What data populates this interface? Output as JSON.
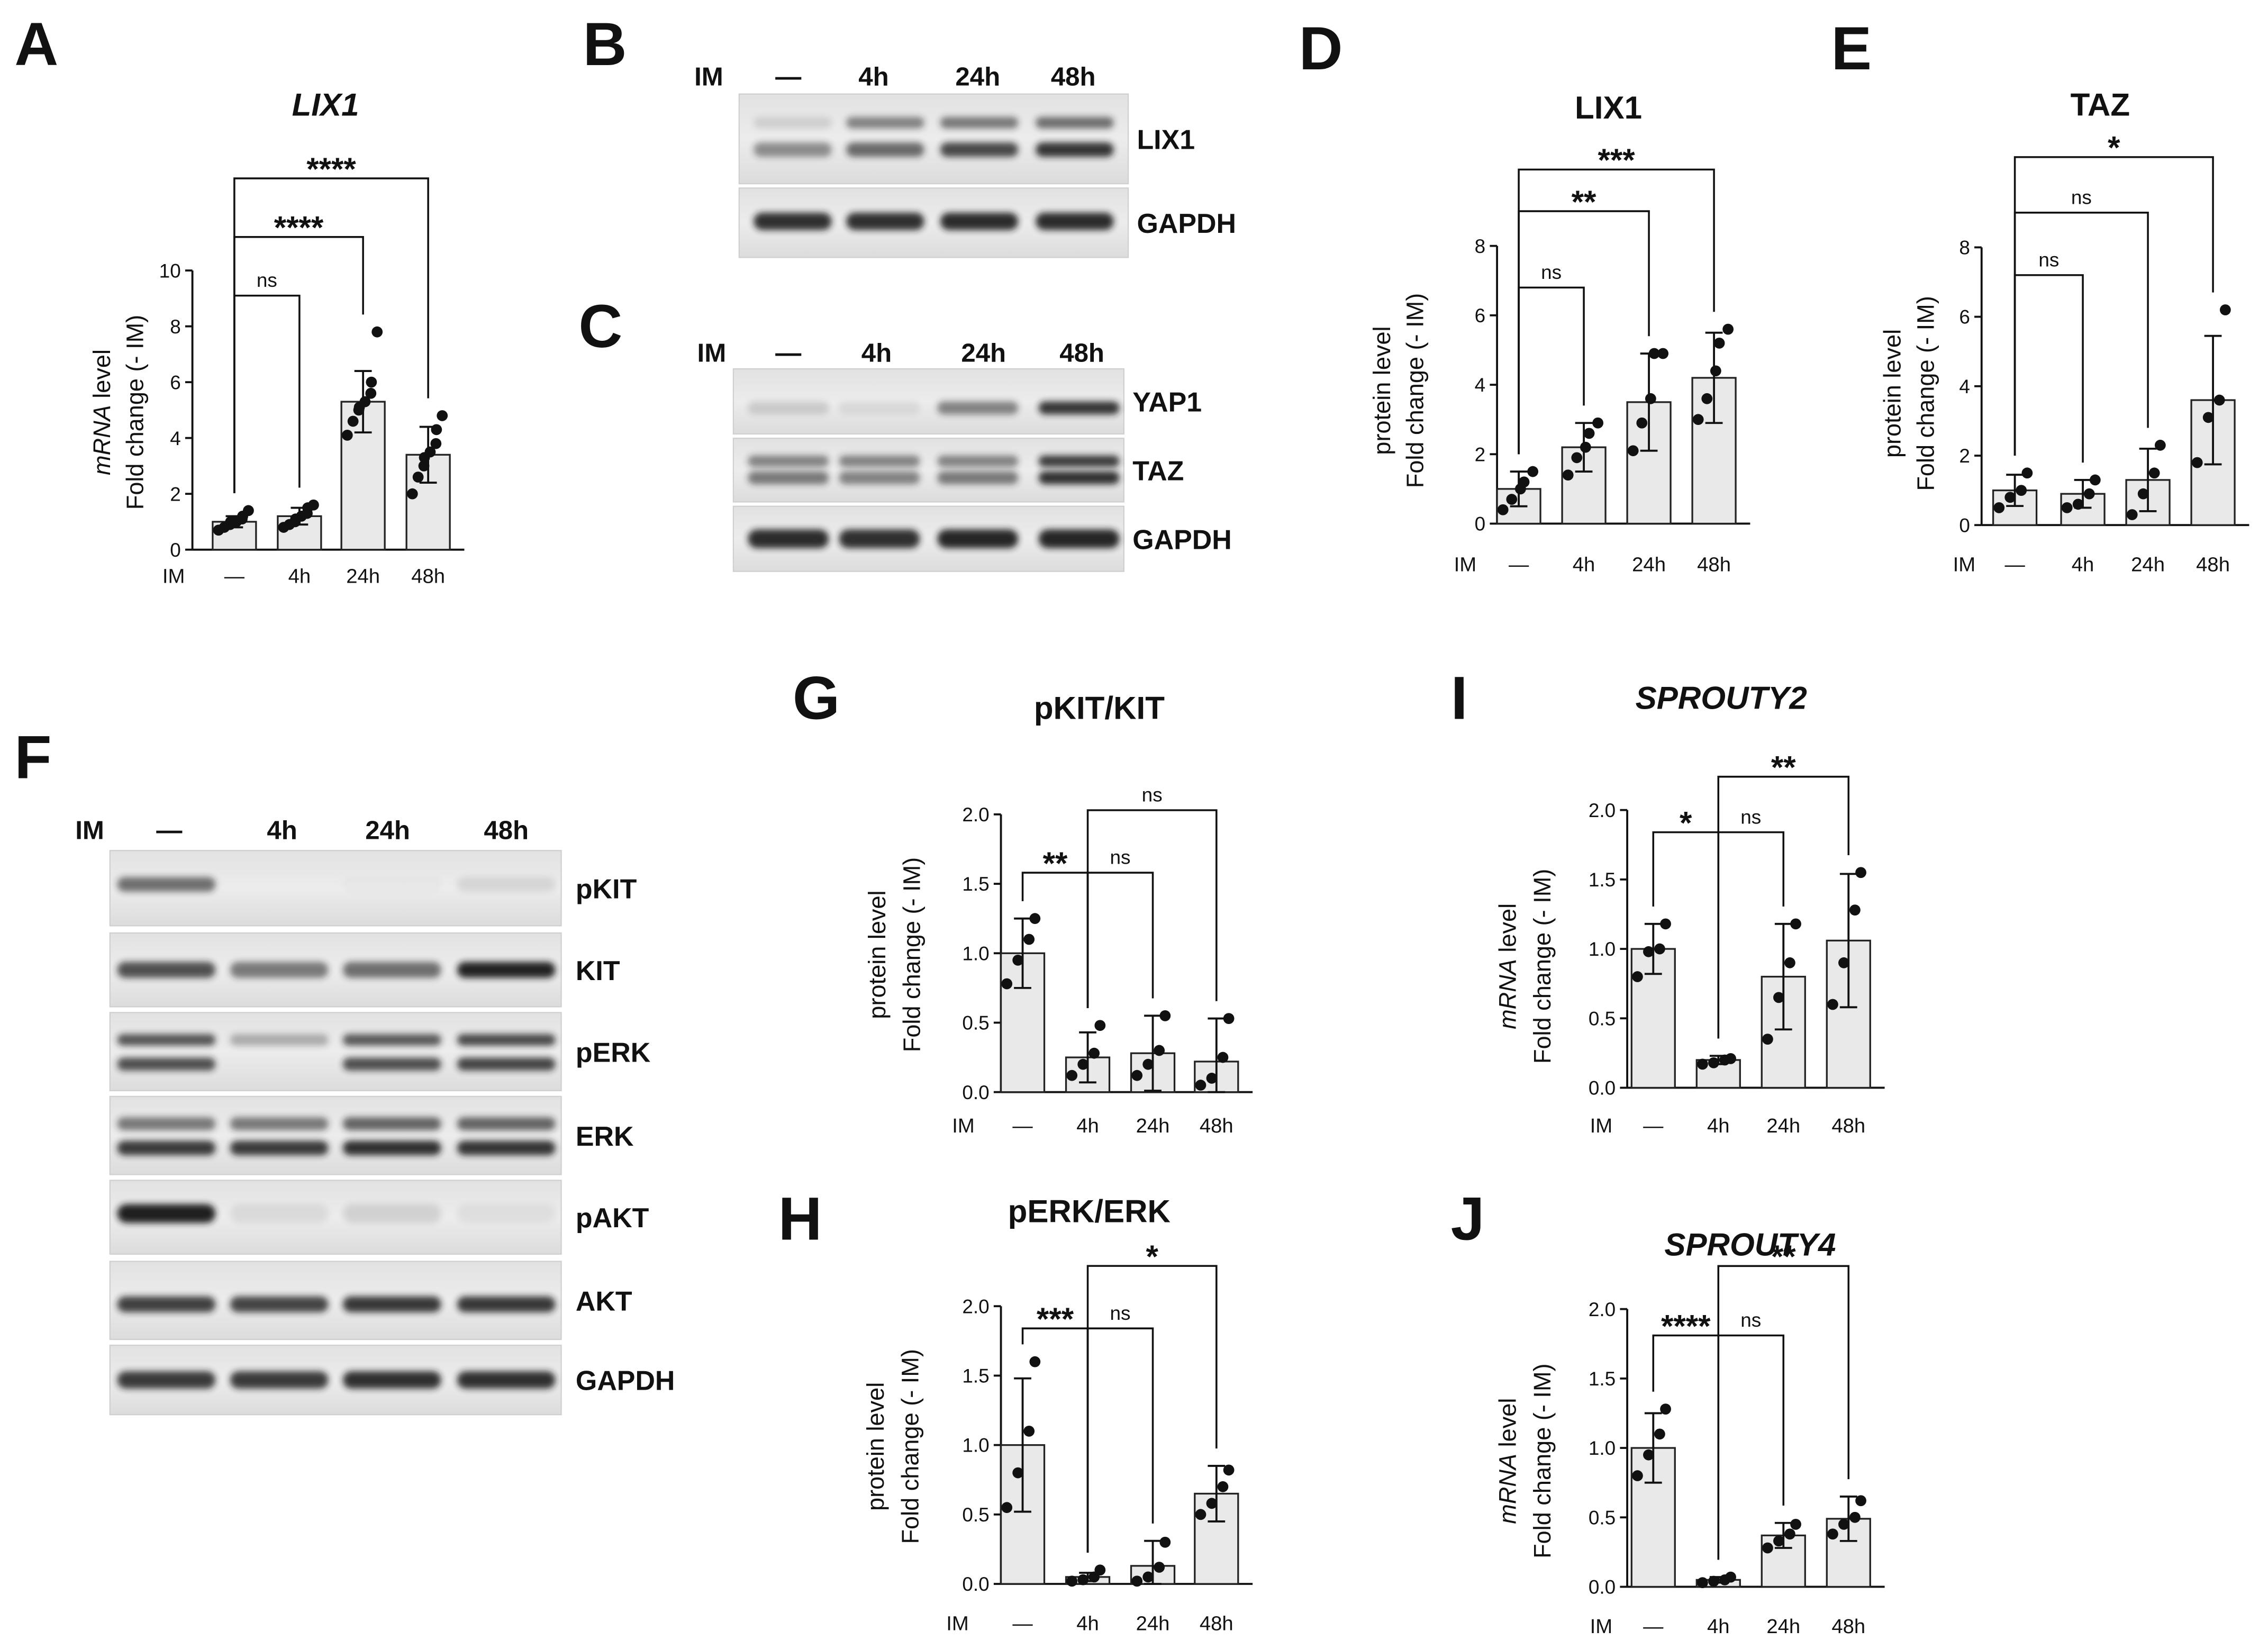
{
  "blots": [
    {
      "panel": "B",
      "header": [
        "IM",
        "—",
        "4h",
        "24h",
        "48h"
      ],
      "rows": [
        "LIX1",
        "GAPDH"
      ]
    },
    {
      "panel": "C",
      "header": [
        "IM",
        "—",
        "4h",
        "24h",
        "48h"
      ],
      "rows": [
        "YAP1",
        "TAZ",
        "GAPDH"
      ]
    },
    {
      "panel": "F",
      "header": [
        "IM",
        "—",
        "4h",
        "24h",
        "48h"
      ],
      "rows": [
        "pKIT",
        "KIT",
        "pERK",
        "ERK",
        "pAKT",
        "AKT",
        "GAPDH"
      ]
    }
  ],
  "chart_data": [
    {
      "panel": "A",
      "type": "bar",
      "title": "LIX1",
      "title_italic": true,
      "ylabel": [
        [
          {
            "t": "mRNA",
            "i": true
          },
          {
            "t": " level"
          }
        ],
        [
          {
            "t": "Fold change (- IM)"
          }
        ]
      ],
      "xlabel": "IM",
      "categories": [
        "—",
        "4h",
        "24h",
        "48h"
      ],
      "ylim": [
        0,
        10
      ],
      "yticks": [
        0,
        2,
        4,
        6,
        8,
        10
      ],
      "ytick_labels": [
        "0",
        "2",
        "4",
        "6",
        "8",
        "10"
      ],
      "values": [
        1.0,
        1.2,
        5.3,
        3.4
      ],
      "sd": [
        0.2,
        0.3,
        1.1,
        1.0
      ],
      "points": [
        [
          0.7,
          0.8,
          0.9,
          1.0,
          1.0,
          1.1,
          1.2,
          1.4
        ],
        [
          0.8,
          0.9,
          1.0,
          1.1,
          1.2,
          1.3,
          1.5,
          1.6
        ],
        [
          4.1,
          4.6,
          5.0,
          5.1,
          5.3,
          5.6,
          6.0,
          7.8
        ],
        [
          2.0,
          2.6,
          3.0,
          3.3,
          3.5,
          3.8,
          4.3,
          4.8
        ]
      ],
      "comparisons": [
        {
          "from": 0,
          "to": 1,
          "label": "ns",
          "y": 9.1
        },
        {
          "from": 0,
          "to": 2,
          "label": "****",
          "y": 11.2
        },
        {
          "from": 0,
          "to": 3,
          "label": "****",
          "y": 13.3
        }
      ]
    },
    {
      "panel": "D",
      "type": "bar",
      "title": "LIX1",
      "title_italic": false,
      "ylabel": [
        [
          {
            "t": "protein level"
          }
        ],
        [
          {
            "t": "Fold change (- IM)"
          }
        ]
      ],
      "xlabel": "IM",
      "categories": [
        "—",
        "4h",
        "24h",
        "48h"
      ],
      "ylim": [
        0,
        8
      ],
      "yticks": [
        0,
        2,
        4,
        6,
        8
      ],
      "ytick_labels": [
        "0",
        "2",
        "4",
        "6",
        "8"
      ],
      "values": [
        1.0,
        2.2,
        3.5,
        4.2
      ],
      "sd": [
        0.5,
        0.7,
        1.4,
        1.3
      ],
      "points": [
        [
          0.4,
          0.7,
          1.0,
          1.2,
          1.5
        ],
        [
          1.4,
          1.9,
          2.2,
          2.6,
          2.9
        ],
        [
          2.1,
          2.9,
          3.6,
          4.9,
          4.9
        ],
        [
          3.0,
          3.6,
          4.4,
          5.2,
          5.6
        ]
      ],
      "comparisons": [
        {
          "from": 0,
          "to": 1,
          "label": "ns",
          "y": 6.8
        },
        {
          "from": 0,
          "to": 2,
          "label": "**",
          "y": 9.0
        },
        {
          "from": 0,
          "to": 3,
          "label": "***",
          "y": 10.2
        }
      ]
    },
    {
      "panel": "E",
      "type": "bar",
      "title": "TAZ",
      "title_italic": false,
      "ylabel": [
        [
          {
            "t": "protein level"
          }
        ],
        [
          {
            "t": "Fold change (- IM)"
          }
        ]
      ],
      "xlabel": "IM",
      "categories": [
        "—",
        "4h",
        "24h",
        "48h"
      ],
      "ylim": [
        0,
        8
      ],
      "yticks": [
        0,
        2,
        4,
        6,
        8
      ],
      "ytick_labels": [
        "0",
        "2",
        "4",
        "6",
        "8"
      ],
      "values": [
        1.0,
        0.9,
        1.3,
        3.6
      ],
      "sd": [
        0.45,
        0.4,
        0.9,
        1.85
      ],
      "points": [
        [
          0.5,
          0.8,
          1.0,
          1.5
        ],
        [
          0.5,
          0.6,
          0.9,
          1.3
        ],
        [
          0.3,
          0.9,
          1.5,
          2.3
        ],
        [
          1.8,
          3.1,
          3.6,
          6.2
        ]
      ],
      "comparisons": [
        {
          "from": 0,
          "to": 1,
          "label": "ns",
          "y": 7.2
        },
        {
          "from": 0,
          "to": 2,
          "label": "ns",
          "y": 9.0
        },
        {
          "from": 0,
          "to": 3,
          "label": "*",
          "y": 10.6
        }
      ]
    },
    {
      "panel": "G",
      "type": "bar",
      "title": "pKIT/KIT",
      "title_italic": false,
      "ylabel": [
        [
          {
            "t": "protein level"
          }
        ],
        [
          {
            "t": "Fold change (- IM)"
          }
        ]
      ],
      "xlabel": "IM",
      "categories": [
        "—",
        "4h",
        "24h",
        "48h"
      ],
      "ylim": [
        0,
        2
      ],
      "yticks": [
        0,
        0.5,
        1,
        1.5,
        2
      ],
      "ytick_labels": [
        "0.0",
        "0.5",
        "1.0",
        "1.5",
        "2.0"
      ],
      "values": [
        1.0,
        0.25,
        0.28,
        0.22
      ],
      "sd": [
        0.25,
        0.18,
        0.27,
        0.31
      ],
      "points": [
        [
          0.78,
          0.95,
          1.1,
          1.25
        ],
        [
          0.12,
          0.2,
          0.28,
          0.48
        ],
        [
          0.12,
          0.2,
          0.3,
          0.55
        ],
        [
          0.05,
          0.1,
          0.25,
          0.53
        ]
      ],
      "comparisons": [
        {
          "from": 0,
          "to": 1,
          "label": "**",
          "y": 1.58
        },
        {
          "from": 1,
          "to": 2,
          "label": "ns",
          "y": 1.58
        },
        {
          "from": 1,
          "to": 3,
          "label": "ns",
          "y": 2.03
        }
      ]
    },
    {
      "panel": "H",
      "type": "bar",
      "title": "pERK/ERK",
      "title_italic": false,
      "ylabel": [
        [
          {
            "t": "protein level"
          }
        ],
        [
          {
            "t": "Fold change (- IM)"
          }
        ]
      ],
      "xlabel": "IM",
      "categories": [
        "—",
        "4h",
        "24h",
        "48h"
      ],
      "ylim": [
        0,
        2
      ],
      "yticks": [
        0,
        0.5,
        1,
        1.5,
        2
      ],
      "ytick_labels": [
        "0.0",
        "0.5",
        "1.0",
        "1.5",
        "2.0"
      ],
      "values": [
        1.0,
        0.05,
        0.13,
        0.65
      ],
      "sd": [
        0.48,
        0.03,
        0.18,
        0.2
      ],
      "points": [
        [
          0.55,
          0.8,
          1.1,
          1.6
        ],
        [
          0.02,
          0.03,
          0.05,
          0.1
        ],
        [
          0.02,
          0.05,
          0.12,
          0.3
        ],
        [
          0.5,
          0.58,
          0.7,
          0.82
        ]
      ],
      "comparisons": [
        {
          "from": 0,
          "to": 1,
          "label": "***",
          "y": 1.84
        },
        {
          "from": 1,
          "to": 2,
          "label": "ns",
          "y": 1.84
        },
        {
          "from": 1,
          "to": 3,
          "label": "*",
          "y": 2.29
        }
      ]
    },
    {
      "panel": "I",
      "type": "bar",
      "title": "SPROUTY2",
      "title_italic": true,
      "ylabel": [
        [
          {
            "t": "mRNA",
            "i": true
          },
          {
            "t": " level"
          }
        ],
        [
          {
            "t": "Fold change (- IM)"
          }
        ]
      ],
      "xlabel": "IM",
      "categories": [
        "—",
        "4h",
        "24h",
        "48h"
      ],
      "ylim": [
        0,
        2
      ],
      "yticks": [
        0,
        0.5,
        1,
        1.5,
        2
      ],
      "ytick_labels": [
        "0.0",
        "0.5",
        "1.0",
        "1.5",
        "2.0"
      ],
      "values": [
        1.0,
        0.2,
        0.8,
        1.06
      ],
      "sd": [
        0.18,
        0.03,
        0.38,
        0.48
      ],
      "points": [
        [
          0.8,
          0.98,
          1.0,
          1.18
        ],
        [
          0.17,
          0.18,
          0.2,
          0.21
        ],
        [
          0.35,
          0.65,
          0.9,
          1.18
        ],
        [
          0.6,
          0.9,
          1.28,
          1.55
        ]
      ],
      "comparisons": [
        {
          "from": 0,
          "to": 1,
          "label": "*",
          "y": 1.84
        },
        {
          "from": 1,
          "to": 2,
          "label": "ns",
          "y": 1.84
        },
        {
          "from": 1,
          "to": 3,
          "label": "**",
          "y": 2.24
        }
      ]
    },
    {
      "panel": "J",
      "type": "bar",
      "title": "SPROUTY4",
      "title_italic": true,
      "ylabel": [
        [
          {
            "t": "mRNA",
            "i": true
          },
          {
            "t": " level"
          }
        ],
        [
          {
            "t": "Fold change (- IM)"
          }
        ]
      ],
      "xlabel": "IM",
      "categories": [
        "—",
        "4h",
        "24h",
        "48h"
      ],
      "ylim": [
        0,
        2
      ],
      "yticks": [
        0,
        0.5,
        1,
        1.5,
        2
      ],
      "ytick_labels": [
        "0.0",
        "0.5",
        "1.0",
        "1.5",
        "2.0"
      ],
      "values": [
        1.0,
        0.05,
        0.37,
        0.49
      ],
      "sd": [
        0.25,
        0.02,
        0.09,
        0.16
      ],
      "points": [
        [
          0.8,
          0.95,
          1.1,
          1.28
        ],
        [
          0.03,
          0.04,
          0.05,
          0.07
        ],
        [
          0.28,
          0.33,
          0.38,
          0.45
        ],
        [
          0.38,
          0.45,
          0.5,
          0.62
        ]
      ],
      "comparisons": [
        {
          "from": 0,
          "to": 1,
          "label": "****",
          "y": 1.81
        },
        {
          "from": 1,
          "to": 2,
          "label": "ns",
          "y": 1.81
        },
        {
          "from": 1,
          "to": 3,
          "label": "**",
          "y": 2.31
        }
      ]
    }
  ]
}
